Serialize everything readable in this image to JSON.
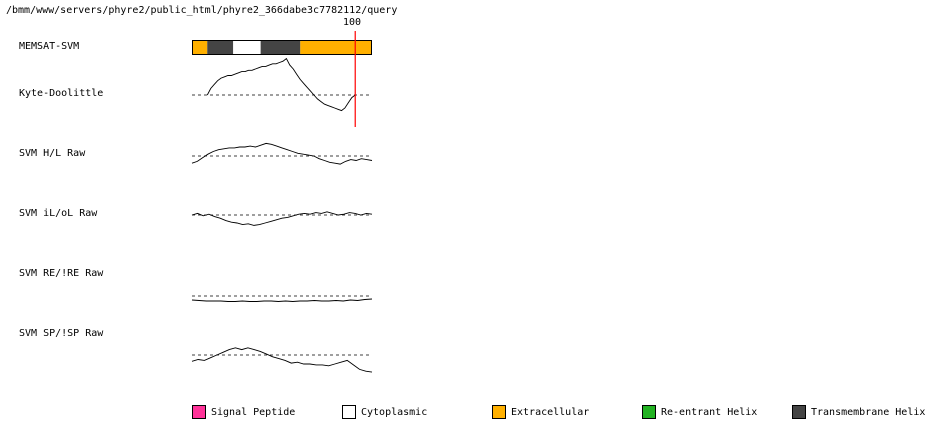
{
  "header": {
    "path": "/bmm/www/servers/phyre2/public_html/phyre2_366dabe3c7782112/query"
  },
  "chart_data": {
    "type": "line",
    "title": "",
    "x_range": [
      0,
      118
    ],
    "marker": {
      "position": 107,
      "label": "100",
      "color": "#ff0000"
    },
    "memsat": {
      "label": "MEMSAT-SVM",
      "segments": [
        {
          "start": 0,
          "end": 10,
          "class": "Extracellular"
        },
        {
          "start": 10,
          "end": 27,
          "class": "Transmembrane Helix"
        },
        {
          "start": 27,
          "end": 45,
          "class": "Cytoplasmic"
        },
        {
          "start": 45,
          "end": 71,
          "class": "Transmembrane Helix"
        },
        {
          "start": 71,
          "end": 118,
          "class": "Extracellular"
        }
      ]
    },
    "tracks": [
      {
        "label": "Kyte-Doolittle",
        "x_start": 10,
        "x_end": 107,
        "values": [
          0.0,
          0.5,
          0.8,
          1.1,
          1.3,
          1.4,
          1.5,
          1.5,
          1.6,
          1.7,
          1.8,
          1.8,
          1.9,
          1.9,
          2.0,
          2.1,
          2.2,
          2.2,
          2.3,
          2.4,
          2.4,
          2.5,
          2.6,
          2.8,
          2.3,
          2.0,
          1.6,
          1.2,
          0.9,
          0.6,
          0.3,
          0.0,
          -0.3,
          -0.5,
          -0.7,
          -0.8,
          -0.9,
          -1.0,
          -1.1,
          -1.2,
          -1.0,
          -0.6,
          -0.2,
          0.0
        ]
      },
      {
        "label": "SVM H/L Raw",
        "x_start": 0,
        "x_end": 118,
        "values": [
          -0.8,
          -0.6,
          -0.2,
          0.2,
          0.5,
          0.7,
          0.8,
          0.9,
          0.9,
          1.0,
          1.0,
          1.1,
          1.0,
          1.2,
          1.4,
          1.3,
          1.1,
          0.9,
          0.7,
          0.5,
          0.3,
          0.2,
          0.1,
          0.0,
          -0.3,
          -0.5,
          -0.7,
          -0.8,
          -0.9,
          -0.6,
          -0.4,
          -0.5,
          -0.3,
          -0.4,
          -0.5
        ]
      },
      {
        "label": "SVM iL/oL Raw",
        "x_start": 0,
        "x_end": 118,
        "values": [
          0.0,
          0.2,
          -0.1,
          0.1,
          -0.2,
          -0.4,
          -0.7,
          -0.9,
          -1.0,
          -1.2,
          -1.1,
          -1.3,
          -1.2,
          -1.0,
          -0.8,
          -0.6,
          -0.4,
          -0.3,
          -0.1,
          0.1,
          0.2,
          0.1,
          0.3,
          0.2,
          0.4,
          0.2,
          0.0,
          0.1,
          0.3,
          0.2,
          0.0,
          0.2,
          0.1
        ]
      },
      {
        "label": "SVM RE/!RE Raw",
        "x_start": 0,
        "x_end": 118,
        "values": [
          -0.8,
          -0.9,
          -1.0,
          -1.0,
          -1.0,
          -1.1,
          -1.1,
          -1.0,
          -1.1,
          -1.1,
          -1.0,
          -1.0,
          -1.1,
          -1.0,
          -1.1,
          -1.0,
          -1.0,
          -0.9,
          -1.0,
          -1.0,
          -0.9,
          -1.0,
          -0.8,
          -0.9,
          -0.7,
          -0.6
        ]
      },
      {
        "label": "SVM SP/!SP Raw",
        "x_start": 0,
        "x_end": 118,
        "values": [
          -0.7,
          -0.5,
          -0.6,
          -0.3,
          0.0,
          0.3,
          0.6,
          0.8,
          0.6,
          0.8,
          0.6,
          0.4,
          0.1,
          -0.2,
          -0.4,
          -0.6,
          -0.9,
          -0.8,
          -1.0,
          -1.0,
          -1.1,
          -1.1,
          -1.2,
          -1.0,
          -0.8,
          -0.6,
          -1.1,
          -1.6,
          -1.8,
          -1.9
        ]
      }
    ],
    "legend": [
      {
        "label": "Signal Peptide",
        "color": "#ff3399"
      },
      {
        "label": "Cytoplasmic",
        "color": "#ffffff"
      },
      {
        "label": "Extracellular",
        "color": "#ffb000"
      },
      {
        "label": "Re-entrant Helix",
        "color": "#22b222"
      },
      {
        "label": "Transmembrane Helix",
        "color": "#444444"
      }
    ],
    "legend_placement": "bottom"
  }
}
